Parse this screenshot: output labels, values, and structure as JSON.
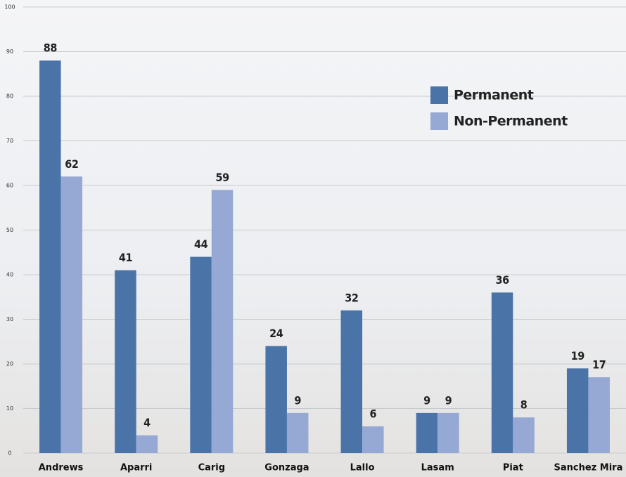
{
  "chart_data": {
    "type": "bar",
    "categories": [
      "Andrews",
      "Aparri",
      "Carig",
      "Gonzaga",
      "Lallo",
      "Lasam",
      "Piat",
      "Sanchez Mira"
    ],
    "series": [
      {
        "name": "Permanent",
        "color": "#4a74a8",
        "values": [
          88,
          41,
          44,
          24,
          32,
          9,
          36,
          19
        ]
      },
      {
        "name": "Non-Permanent",
        "color": "#95a9d4",
        "values": [
          62,
          4,
          59,
          9,
          6,
          9,
          8,
          17
        ]
      }
    ],
    "ylim": [
      0,
      100
    ],
    "yticks": [
      0,
      10,
      20,
      30,
      40,
      50,
      60,
      70,
      80,
      90,
      100
    ],
    "grid": true,
    "legend": "upper right",
    "data_labels": true
  }
}
